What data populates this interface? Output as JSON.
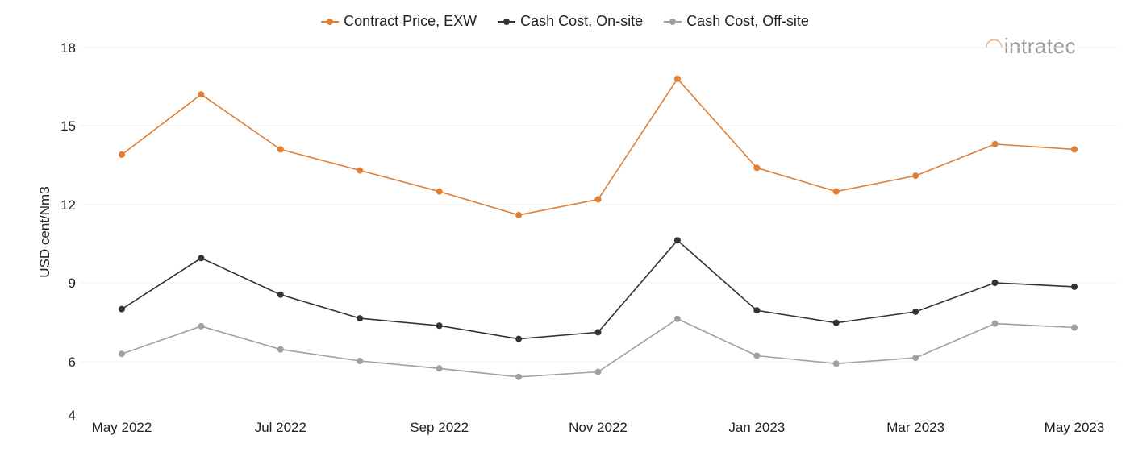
{
  "chart_data": {
    "type": "line",
    "categories": [
      "May 2022",
      "Jun 2022",
      "Jul 2022",
      "Aug 2022",
      "Sep 2022",
      "Oct 2022",
      "Nov 2022",
      "Dec 2022",
      "Jan 2023",
      "Feb 2023",
      "Mar 2023",
      "Apr 2023",
      "May 2023"
    ],
    "tick_labels": [
      "May 2022",
      "",
      "Jul 2022",
      "",
      "Sep 2022",
      "",
      "Nov 2022",
      "",
      "Jan 2023",
      "",
      "Mar 2023",
      "",
      "May 2023"
    ],
    "ylabel": "USD cent/Nm3",
    "ylim": [
      4,
      18
    ],
    "yticks": [
      4,
      6,
      9,
      12,
      15,
      18
    ],
    "grid": true,
    "legend_position": "top-center",
    "series": [
      {
        "name": "Contract Price, EXW",
        "color": "#e07e33",
        "values": [
          13.9,
          16.2,
          14.1,
          13.3,
          12.5,
          11.6,
          12.2,
          16.8,
          13.4,
          12.5,
          13.1,
          14.3,
          14.1
        ]
      },
      {
        "name": "Cash Cost, On-site",
        "color": "#333333",
        "values": [
          8.0,
          9.95,
          8.55,
          7.65,
          7.37,
          6.87,
          7.12,
          10.63,
          7.95,
          7.48,
          7.9,
          9.0,
          8.85
        ]
      },
      {
        "name": "Cash Cost, Off-site",
        "color": "#a0a0a0",
        "values": [
          6.3,
          7.35,
          6.47,
          6.03,
          5.75,
          5.43,
          5.62,
          7.63,
          6.23,
          5.93,
          6.15,
          7.45,
          7.3
        ]
      }
    ]
  },
  "logo": {
    "mark": "ꞔ",
    "text": "intratec"
  }
}
